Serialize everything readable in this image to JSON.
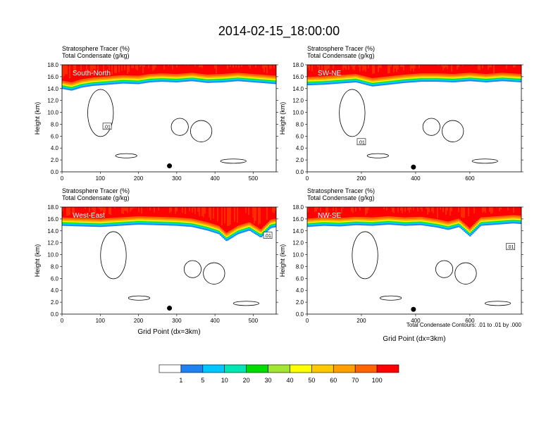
{
  "title": "2014-02-15_18:00:00",
  "colors": {
    "background": "#ffffff",
    "ramp": [
      "#ffffff",
      "#1e82f0",
      "#00c8ff",
      "#00e6b4",
      "#00dc00",
      "#a0e632",
      "#ffff00",
      "#ffc800",
      "#ffa000",
      "#ff6400",
      "#ff0000"
    ]
  },
  "chart_data": {
    "type": "heatmap",
    "panel_label_top_1": "Stratosphere Tracer   (%)",
    "panel_label_top_2": "Total Condensate   (g/kg)",
    "ylabel": "Height (km)",
    "xlabel": "Grid Point (dx=3km)",
    "y_ticks": [
      "0.0",
      "2.0",
      "4.0",
      "6.0",
      "8.0",
      "10.0",
      "12.0",
      "14.0",
      "16.0",
      "18.0"
    ],
    "ylim": [
      0,
      18
    ],
    "contour_note": "Total Condensate Contours: .01 to .01 by .000",
    "colorbar": {
      "levels": [
        "1",
        "5",
        "10",
        "20",
        "30",
        "40",
        "50",
        "60",
        "70",
        "100"
      ]
    },
    "panels": [
      {
        "name": "South-North",
        "xlim": [
          0,
          560
        ],
        "x_ticks": [
          0,
          100,
          200,
          300,
          400,
          500
        ],
        "contour_label": ".01",
        "contour_label_at": [
          118,
          7.6
        ],
        "marker_x": 281,
        "marker_y": 1.0,
        "tropopause_km": [
          [
            0,
            14.3
          ],
          [
            25,
            14.0
          ],
          [
            50,
            14.5
          ],
          [
            80,
            14.8
          ],
          [
            120,
            15.0
          ],
          [
            160,
            15.2
          ],
          [
            200,
            15.1
          ],
          [
            230,
            15.4
          ],
          [
            260,
            15.5
          ],
          [
            300,
            15.4
          ],
          [
            340,
            15.6
          ],
          [
            380,
            15.3
          ],
          [
            420,
            15.4
          ],
          [
            460,
            15.6
          ],
          [
            500,
            15.4
          ],
          [
            540,
            15.2
          ],
          [
            560,
            15.1
          ]
        ]
      },
      {
        "name": "SW-NE",
        "xlim": [
          0,
          790
        ],
        "x_ticks": [
          0,
          200,
          400,
          600
        ],
        "contour_label": ".01",
        "contour_label_at": [
          200,
          5.0
        ],
        "marker_x": 392,
        "marker_y": 0.8,
        "tropopause_km": [
          [
            0,
            14.9
          ],
          [
            60,
            15.0
          ],
          [
            120,
            15.2
          ],
          [
            180,
            15.4
          ],
          [
            240,
            14.7
          ],
          [
            300,
            15.0
          ],
          [
            360,
            15.3
          ],
          [
            420,
            15.5
          ],
          [
            480,
            15.5
          ],
          [
            540,
            15.4
          ],
          [
            600,
            15.6
          ],
          [
            660,
            15.4
          ],
          [
            720,
            15.6
          ],
          [
            790,
            15.4
          ]
        ]
      },
      {
        "name": "West-East",
        "xlim": [
          0,
          560
        ],
        "x_ticks": [
          0,
          100,
          200,
          300,
          400,
          500
        ],
        "contour_label": ".01",
        "contour_label_at": [
          538,
          13.2
        ],
        "marker_x": 281,
        "marker_y": 1.0,
        "tropopause_km": [
          [
            0,
            15.2
          ],
          [
            50,
            15.1
          ],
          [
            100,
            15.0
          ],
          [
            150,
            15.2
          ],
          [
            200,
            15.4
          ],
          [
            250,
            15.3
          ],
          [
            300,
            15.2
          ],
          [
            340,
            15.0
          ],
          [
            380,
            14.4
          ],
          [
            410,
            13.8
          ],
          [
            430,
            12.6
          ],
          [
            460,
            13.8
          ],
          [
            490,
            14.4
          ],
          [
            520,
            13.2
          ],
          [
            545,
            14.8
          ],
          [
            560,
            15.0
          ]
        ]
      },
      {
        "name": "NW-SE",
        "xlim": [
          0,
          790
        ],
        "x_ticks": [
          0,
          200,
          400,
          600
        ],
        "contour_label": ".01",
        "contour_label_at": [
          750,
          11.3
        ],
        "marker_x": 392,
        "marker_y": 0.8,
        "tropopause_km": [
          [
            0,
            15.0
          ],
          [
            60,
            15.2
          ],
          [
            120,
            15.1
          ],
          [
            180,
            15.3
          ],
          [
            240,
            15.2
          ],
          [
            300,
            15.4
          ],
          [
            360,
            15.2
          ],
          [
            420,
            15.3
          ],
          [
            480,
            14.9
          ],
          [
            520,
            14.5
          ],
          [
            560,
            15.0
          ],
          [
            600,
            13.4
          ],
          [
            640,
            15.2
          ],
          [
            700,
            15.4
          ],
          [
            760,
            15.6
          ],
          [
            790,
            15.5
          ]
        ]
      }
    ]
  }
}
